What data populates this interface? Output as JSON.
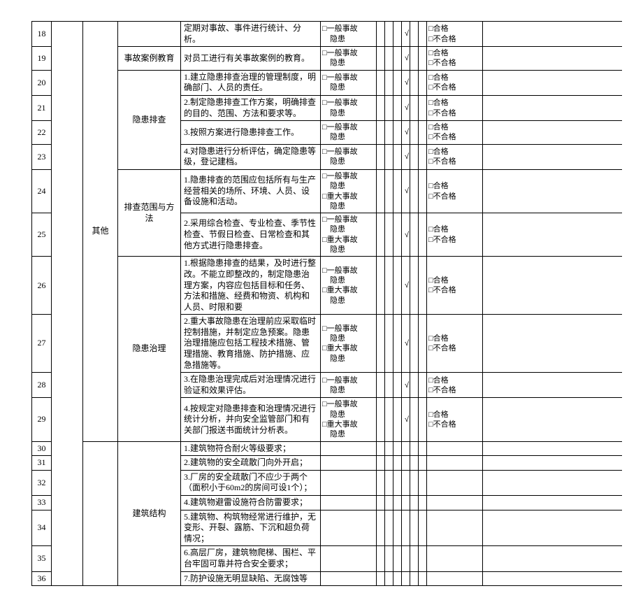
{
  "riskLabels": {
    "general": "一般事故隐患",
    "major": "重大事故隐患"
  },
  "resultLabels": {
    "pass": "合格",
    "fail": "不合格"
  },
  "checkMark": "√",
  "rows": [
    {
      "no": "18",
      "cat2_rowspan": 12,
      "cat2": "其他",
      "cat3_rowspan": 1,
      "cat3": "",
      "desc": "定期对事故、事件进行统计、分析。",
      "risk": [
        "general"
      ],
      "check": true,
      "result": [
        "pass",
        "fail"
      ]
    },
    {
      "no": "19",
      "cat3_rowspan": 1,
      "cat3": "事故案例教育",
      "desc": "对员工进行有关事故案例的教育。",
      "risk": [
        "general"
      ],
      "check": true,
      "result": [
        "pass",
        "fail"
      ]
    },
    {
      "no": "20",
      "cat3_rowspan": 4,
      "cat3": "隐患排查",
      "desc": "1.建立隐患排查治理的管理制度，明确部门、人员的责任。",
      "risk": [
        "general"
      ],
      "check": true,
      "result": [
        "pass",
        "fail"
      ]
    },
    {
      "no": "21",
      "desc": "2.制定隐患排查工作方案，明确排查的目的、范围、方法和要求等。",
      "risk": [
        "general"
      ],
      "check": true,
      "result": [
        "pass",
        "fail"
      ]
    },
    {
      "no": "22",
      "desc": "3.按照方案进行隐患排查工作。",
      "risk": [
        "general"
      ],
      "check": true,
      "result": [
        "pass",
        "fail"
      ]
    },
    {
      "no": "23",
      "desc": "4.对隐患进行分析评估，确定隐患等级，登记建档。",
      "risk": [
        "general"
      ],
      "check": true,
      "result": [
        "pass",
        "fail"
      ]
    },
    {
      "no": "24",
      "cat3_rowspan": 2,
      "cat3": "排查范围与方法",
      "desc": "1.隐患排查的范围应包括所有与生产经营相关的场所、环境、人员、设备设施和活动。",
      "risk": [
        "general",
        "major"
      ],
      "check": true,
      "result": [
        "pass",
        "fail"
      ]
    },
    {
      "no": "25",
      "desc": "2.采用综合检查、专业检查、季节性检查、节假日检查、日常检查和其他方式进行隐患排查。",
      "risk": [
        "general",
        "major"
      ],
      "check": true,
      "result": [
        "pass",
        "fail"
      ]
    },
    {
      "no": "26",
      "cat3_rowspan": 4,
      "cat3": "隐患治理",
      "desc": "1.根据隐患排查的结果，及时进行整改。不能立即整改的，制定隐患治理方案，内容应包括目标和任务、方法和措施、经费和物资、机构和人员、时限和要",
      "risk": [
        "general",
        "major"
      ],
      "check": true,
      "result": [
        "pass",
        "fail"
      ]
    },
    {
      "no": "27",
      "desc": "2.重大事故隐患在治理前应采取临时控制措施，并制定应急预案。隐患治理措施应包括工程技术措施、管理措施、教育措施、防护措施、应急措施等。",
      "risk": [
        "general",
        "major"
      ],
      "check": true,
      "result": [
        "pass",
        "fail"
      ]
    },
    {
      "no": "28",
      "desc": "3.在隐患治理完成后对治理情况进行验证和效果评估。",
      "risk": [
        "general"
      ],
      "check": true,
      "result": [
        "pass",
        "fail"
      ]
    },
    {
      "no": "29",
      "desc": "4.按规定对隐患排查和治理情况进行统计分析，并向安全监管部门和有关部门报送书面统计分析表。",
      "risk": [
        "general",
        "major"
      ],
      "check": true,
      "result": [
        "pass",
        "fail"
      ]
    },
    {
      "no": "30",
      "cat2_rowspan": 7,
      "cat2": "",
      "cat3_rowspan": 7,
      "cat3": "建筑结构",
      "desc": "1.建筑物符合耐火等级要求；",
      "risk": [],
      "check": false,
      "result": []
    },
    {
      "no": "31",
      "desc": "2.建筑物的安全疏散门向外开启；",
      "risk": [],
      "check": false,
      "result": []
    },
    {
      "no": "32",
      "desc": "3.厂房的安全疏散门不应少于两个（面积小于60m2的房间可设1个）；",
      "risk": [],
      "check": false,
      "result": []
    },
    {
      "no": "33",
      "desc": "4.建筑物避雷设施符合防雷要求；",
      "risk": [],
      "check": false,
      "result": []
    },
    {
      "no": "34",
      "desc": "5.建筑物、构筑物经常进行维护，无变形、开裂、露筋、下沉和超负荷情况；",
      "risk": [],
      "check": false,
      "result": []
    },
    {
      "no": "35",
      "desc": "6.高层厂房，建筑物爬梯、围栏、平台牢固可靠并符合安全要求；",
      "risk": [],
      "check": false,
      "result": []
    },
    {
      "no": "36",
      "desc": "7.防护设施无明显缺陷、无腐蚀等",
      "risk": [],
      "check": false,
      "result": []
    }
  ]
}
